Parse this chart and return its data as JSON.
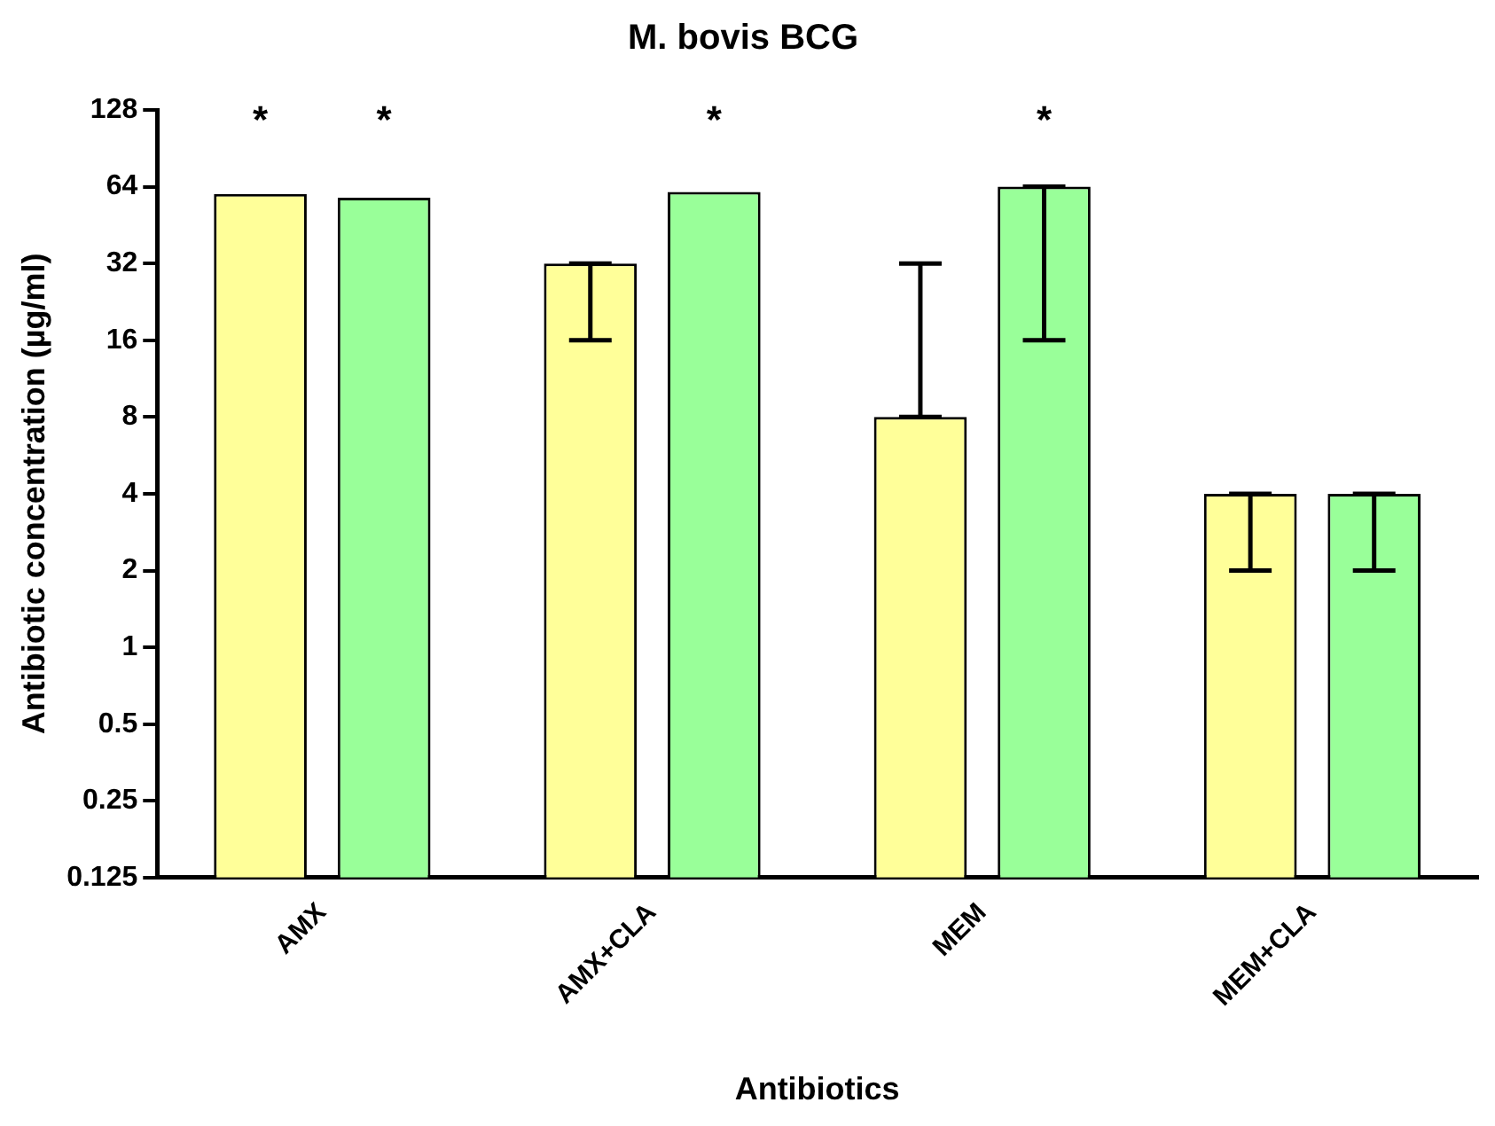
{
  "chart_data": {
    "type": "bar",
    "title": "M. bovis BCG",
    "xlabel": "Antibiotics",
    "ylabel": "Antibiotic concentration (µg/ml)",
    "categories": [
      "AMX",
      "AMX+CLA",
      "MEM",
      "MEM+CLA"
    ],
    "series": [
      {
        "color": "#ffff99",
        "values": [
          60,
          32,
          8,
          4
        ],
        "errors": [
          null,
          [
            16,
            32
          ],
          [
            8,
            32
          ],
          [
            2,
            4
          ]
        ],
        "value_labels": [
          "*",
          null,
          null,
          null
        ]
      },
      {
        "color": "#99ff99",
        "values": [
          58,
          61,
          64,
          4
        ],
        "errors": [
          null,
          null,
          [
            16,
            64
          ],
          [
            2,
            4
          ]
        ],
        "value_labels": [
          "*",
          "*",
          "*",
          null
        ]
      }
    ],
    "log": "y",
    "ylim": [
      0.125,
      128
    ],
    "yticks": [
      0.125,
      0.25,
      0.5,
      1,
      2,
      4,
      8,
      16,
      32,
      64,
      128
    ],
    "grid": false,
    "legend": false
  }
}
